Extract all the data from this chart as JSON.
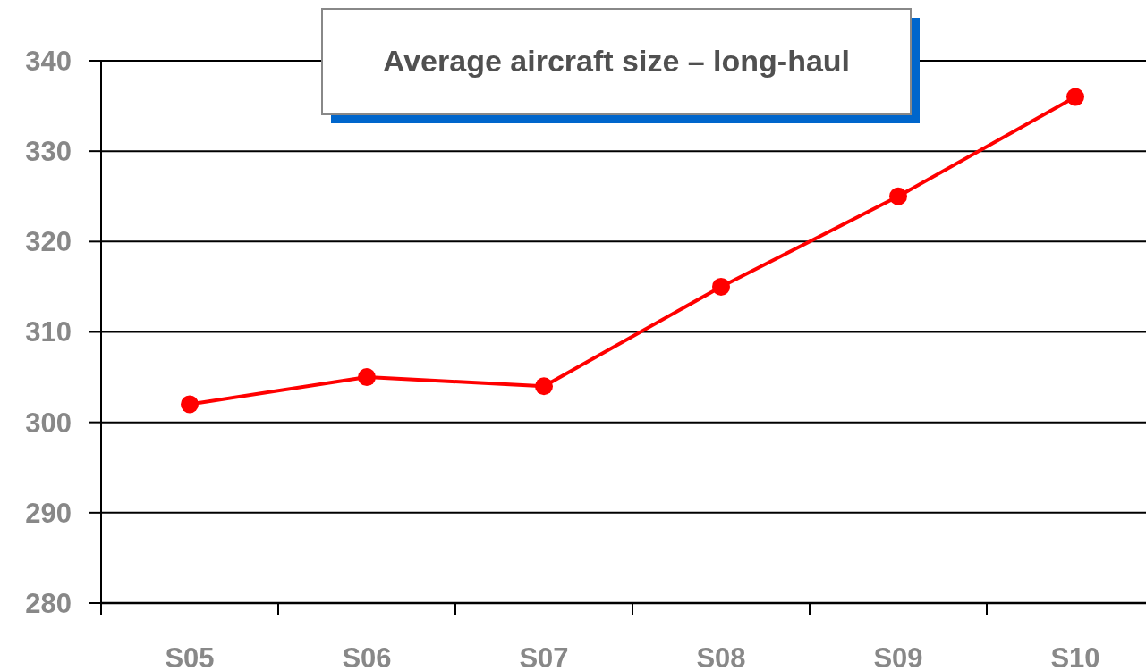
{
  "chart_data": {
    "type": "line",
    "title": "Average aircraft size – long-haul",
    "categories": [
      "S05",
      "S06",
      "S07",
      "S08",
      "S09",
      "S10"
    ],
    "series": [
      {
        "color": "#ff0000",
        "values": [
          302,
          305,
          304,
          315,
          325,
          336
        ]
      }
    ],
    "ylim": [
      280,
      340
    ],
    "yticks": [
      280,
      290,
      300,
      310,
      320,
      330,
      340
    ],
    "grid": "y",
    "marker": "circle",
    "line_style": "solid"
  }
}
